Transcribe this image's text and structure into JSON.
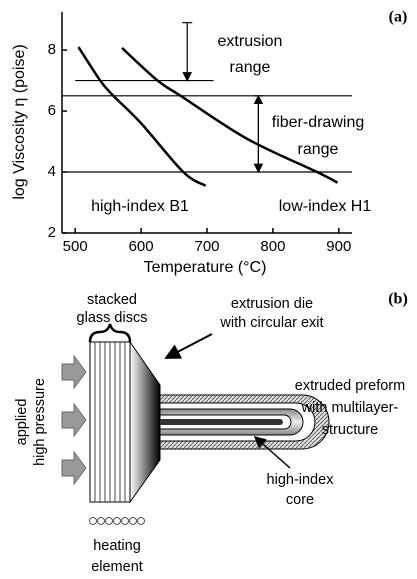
{
  "chart_data": {
    "type": "line",
    "panel_label": "(a)",
    "x_label": "Temperature (°C)",
    "y_label": "log Viscosity η (poise)",
    "xlim": [
      480,
      920
    ],
    "ylim": [
      2,
      9.25
    ],
    "xticks": [
      500,
      600,
      700,
      800,
      900
    ],
    "yticks": [
      2,
      4,
      6,
      8
    ],
    "series": [
      {
        "name": "high-index B1",
        "color": "#000000",
        "x": [
          505,
          538,
          558,
          600,
          664,
          698
        ],
        "values": [
          8.1,
          7.0,
          6.5,
          5.6,
          4.0,
          3.55
        ]
      },
      {
        "name": "low-index H1",
        "color": "#000000",
        "x": [
          571,
          625,
          660,
          760,
          867,
          898
        ],
        "values": [
          8.07,
          7.0,
          6.5,
          5.1,
          4.0,
          3.65
        ]
      }
    ],
    "reference_lines": [
      {
        "y": 7,
        "x": [
          500,
          710
        ]
      },
      {
        "y": 6.5
      },
      {
        "y": 4
      }
    ],
    "ranges": [
      {
        "text": [
          "extrusion",
          "range"
        ],
        "x": 670,
        "y": [
          8.9,
          7
        ]
      },
      {
        "text": [
          "fiber-drawing",
          "range"
        ],
        "x": 778,
        "y": [
          6.5,
          4
        ]
      }
    ]
  },
  "diagram": {
    "panel_label": "(b)",
    "stacked": [
      "stacked",
      "glass discs"
    ],
    "die": [
      "extrusion die",
      "with circular exit"
    ],
    "pressure": [
      "applied",
      "high pressure"
    ],
    "preform": [
      "extruded preform",
      "with multilayer-",
      "structure"
    ],
    "core": [
      "high-index",
      "core"
    ],
    "heating": [
      "heating",
      "element"
    ]
  }
}
